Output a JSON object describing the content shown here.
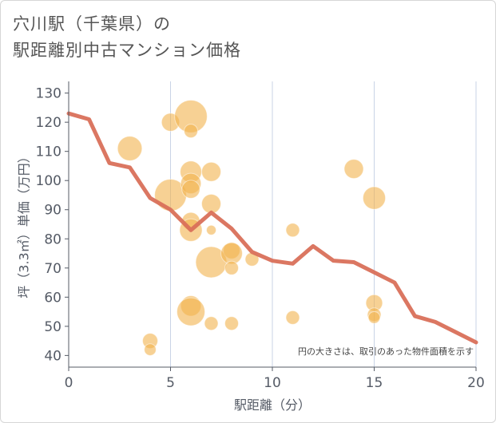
{
  "chart_data": {
    "type": "scatter",
    "title_line1": "穴川駅（千葉県）の",
    "title_line2": "駅距離別中古マンション価格",
    "xlabel": "駅距離（分）",
    "ylabel": "坪（3.3㎡）単価（万円）",
    "note": "円の大きさは、取引のあった物件面積を示す",
    "xlim": [
      0,
      20
    ],
    "ylim": [
      36,
      134
    ],
    "x_ticks": [
      0,
      5,
      10,
      15,
      20
    ],
    "y_ticks": [
      40,
      50,
      60,
      70,
      80,
      90,
      100,
      110,
      120,
      130
    ],
    "grid": "vertical",
    "colors": {
      "bubble": "#f2b24c",
      "line": "#d9705a",
      "axis": "#555b66",
      "grid": "#c9d3e6"
    },
    "bubbles": [
      {
        "x": 3,
        "y": 111,
        "size": 65
      },
      {
        "x": 4,
        "y": 45,
        "size": 25
      },
      {
        "x": 4,
        "y": 42,
        "size": 15
      },
      {
        "x": 5,
        "y": 120,
        "size": 35
      },
      {
        "x": 5,
        "y": 95,
        "size": 110
      },
      {
        "x": 6,
        "y": 122,
        "size": 115
      },
      {
        "x": 6,
        "y": 117,
        "size": 20
      },
      {
        "x": 6,
        "y": 103,
        "size": 50
      },
      {
        "x": 6,
        "y": 99,
        "size": 45
      },
      {
        "x": 6,
        "y": 97,
        "size": 35
      },
      {
        "x": 6,
        "y": 86,
        "size": 35
      },
      {
        "x": 6,
        "y": 83,
        "size": 55
      },
      {
        "x": 6,
        "y": 57,
        "size": 45
      },
      {
        "x": 6,
        "y": 55,
        "size": 85
      },
      {
        "x": 7,
        "y": 103,
        "size": 40
      },
      {
        "x": 7,
        "y": 92,
        "size": 40
      },
      {
        "x": 7,
        "y": 83,
        "size": 10
      },
      {
        "x": 7,
        "y": 72,
        "size": 105
      },
      {
        "x": 7,
        "y": 51,
        "size": 20
      },
      {
        "x": 8,
        "y": 76,
        "size": 30
      },
      {
        "x": 8,
        "y": 75,
        "size": 50
      },
      {
        "x": 8,
        "y": 70,
        "size": 20
      },
      {
        "x": 8,
        "y": 51,
        "size": 20
      },
      {
        "x": 9,
        "y": 73,
        "size": 20
      },
      {
        "x": 11,
        "y": 83,
        "size": 20
      },
      {
        "x": 11,
        "y": 53,
        "size": 20
      },
      {
        "x": 14,
        "y": 104,
        "size": 40
      },
      {
        "x": 15,
        "y": 94,
        "size": 55
      },
      {
        "x": 15,
        "y": 58,
        "size": 30
      },
      {
        "x": 15,
        "y": 54,
        "size": 20
      },
      {
        "x": 15,
        "y": 53,
        "size": 15
      }
    ],
    "trend": {
      "x": [
        0,
        1,
        2,
        3,
        4,
        5,
        6,
        7,
        8,
        9,
        10,
        11,
        12,
        13,
        14,
        15,
        16,
        17,
        18,
        19,
        20
      ],
      "y": [
        123,
        121,
        106,
        104.5,
        94,
        90,
        83,
        89,
        83.5,
        75.5,
        72.5,
        71.5,
        77.5,
        72.5,
        72,
        68.5,
        65,
        53.5,
        51.5,
        48,
        44.5
      ]
    }
  }
}
